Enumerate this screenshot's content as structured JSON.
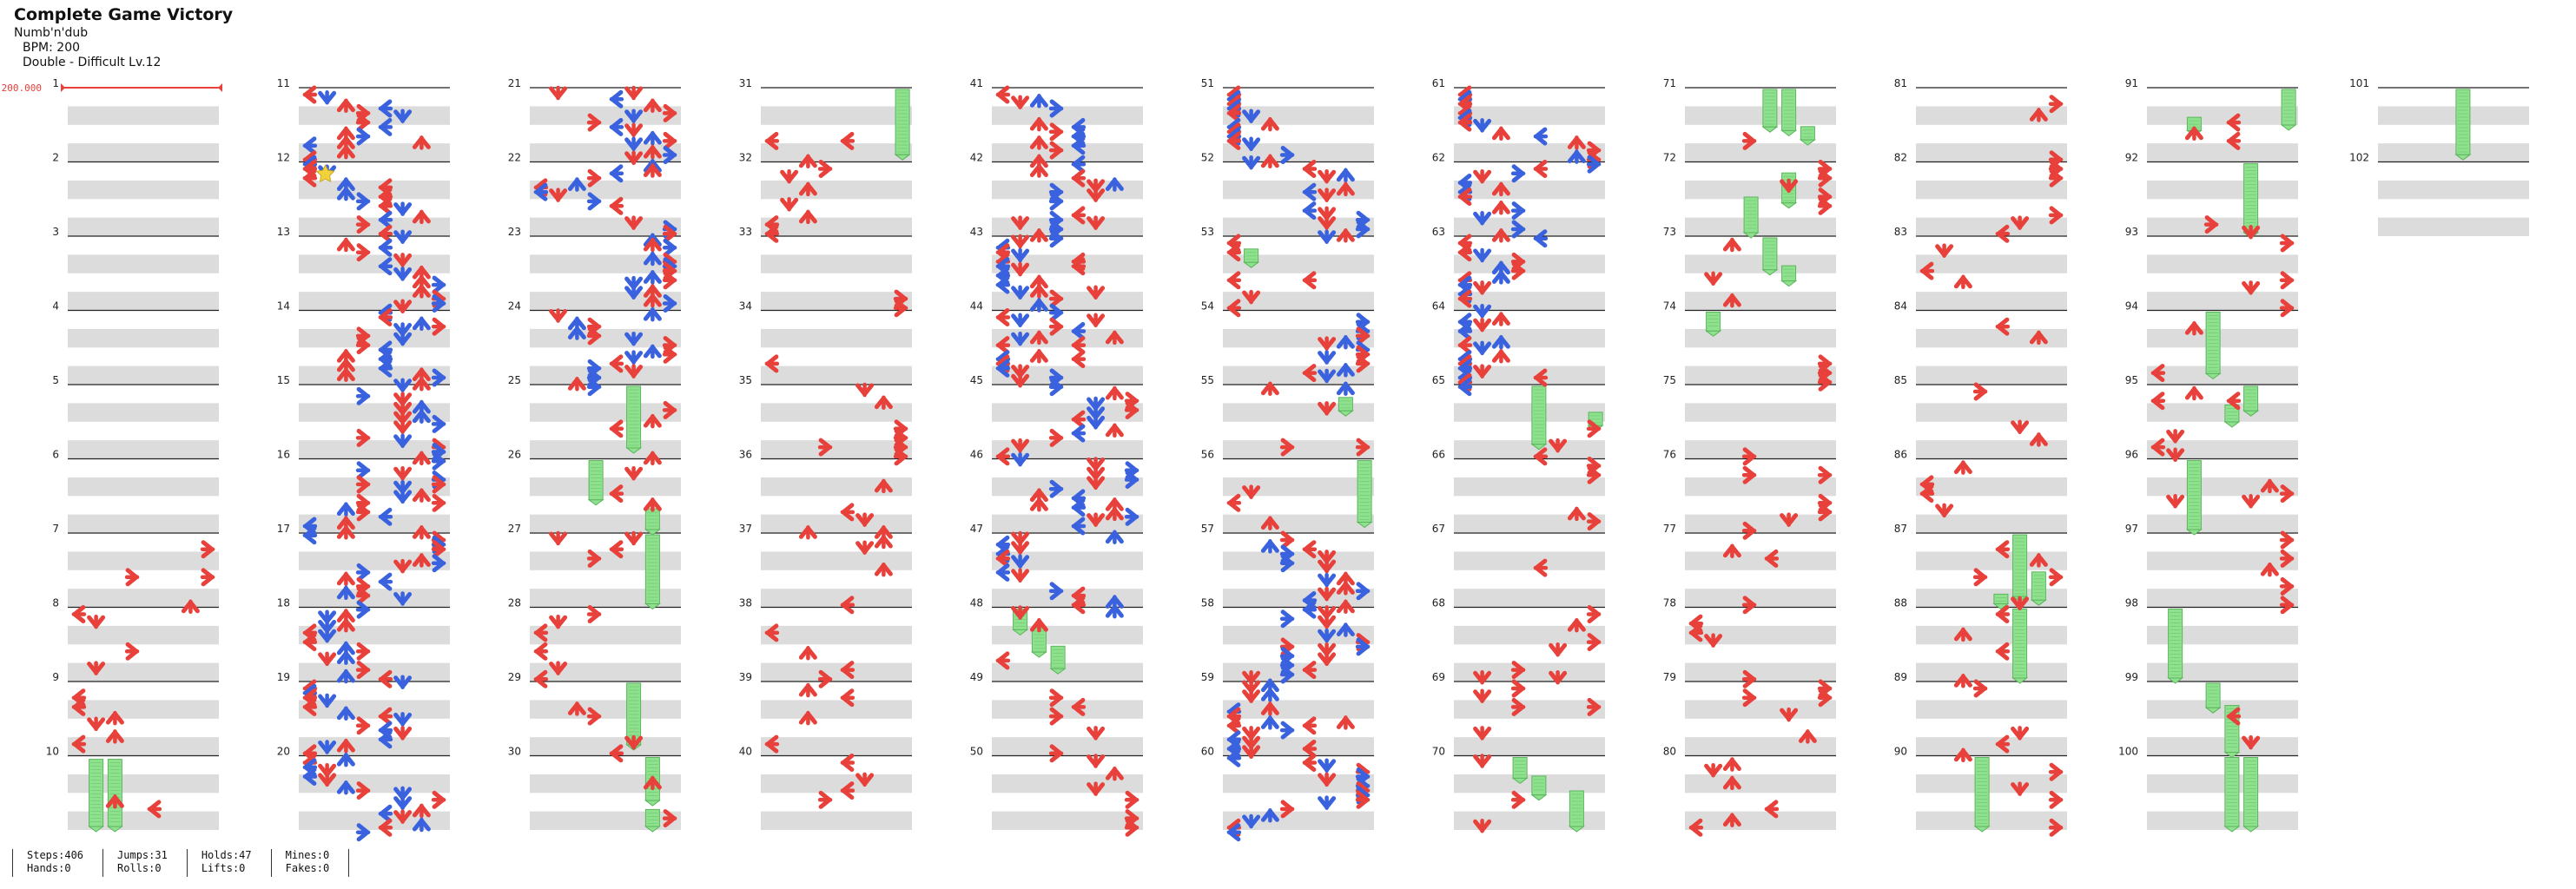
{
  "song": {
    "title": "Complete Game Victory",
    "artist": "Numb'n'dub",
    "bpm_text": "BPM: 200",
    "difficulty_text": "Double - Difficult  Lv.12"
  },
  "bpm_change": {
    "text": "200.000",
    "measure": 1
  },
  "total_measures": 102,
  "colors": {
    "arrow_red": "#e8403a",
    "arrow_blue": "#3a62de",
    "hold_green": "#8fe08f",
    "hold_outline": "#5ab65a",
    "row_band": "#dcdcdc",
    "measure_line": "#222222",
    "bpm_red": "#e8403a",
    "player_marker": "#f2d23a"
  },
  "icons": {
    "note_arrow": "arrow-icon",
    "hold_note": "hold-note",
    "player_marker": "star-icon"
  },
  "stats": {
    "steps": "Steps:406",
    "jumps": "Jumps:31",
    "holds": "Holds:47",
    "mines": "Mines:0",
    "hands": "Hands:0",
    "rolls": "Rolls:0",
    "lifts": "Lifts:0",
    "fakes": "Fakes:0"
  }
}
